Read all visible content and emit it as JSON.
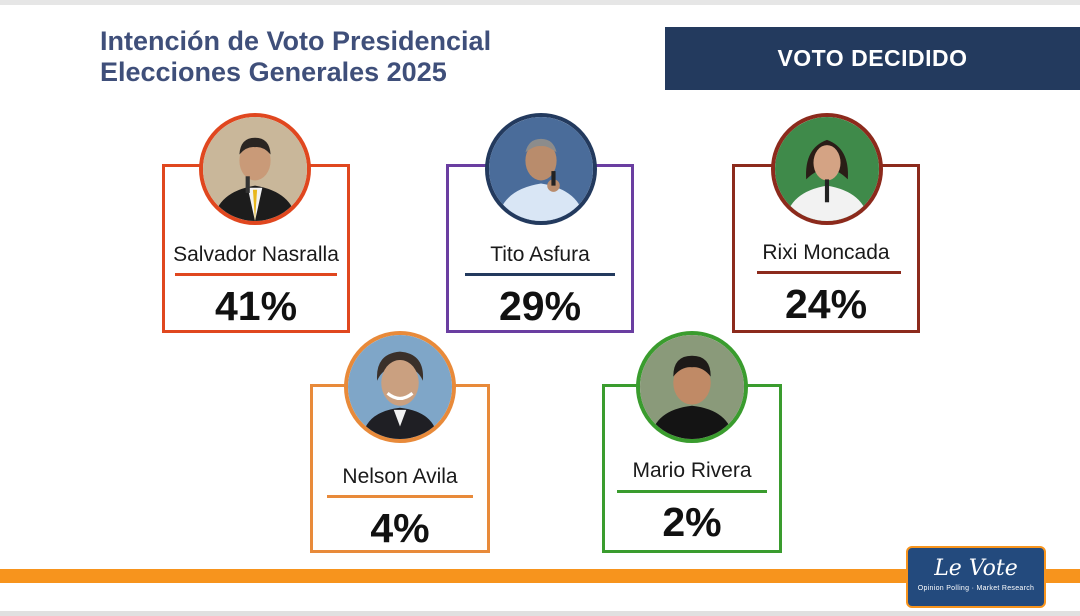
{
  "header": {
    "title_line1": "Intención de Voto Presidencial",
    "title_line2": "Elecciones Generales 2025",
    "banner": "VOTO DECIDIDO"
  },
  "candidates": [
    {
      "name": "Salvador Nasralla",
      "percent": "41%",
      "color": "#e0471f"
    },
    {
      "name": "Tito Asfura",
      "percent": "29%",
      "color": "#6a3ea1"
    },
    {
      "name": "Rixi Moncada",
      "percent": "24%",
      "color": "#8c2a1c"
    },
    {
      "name": "Nelson Avila",
      "percent": "4%",
      "color": "#e88a3a"
    },
    {
      "name": "Mario Rivera",
      "percent": "2%",
      "color": "#3a9c2e"
    }
  ],
  "logo": {
    "brand": "Le Vote",
    "tagline": "Opinion Polling · Market Research"
  },
  "colors": {
    "title": "#3f4f7a",
    "banner_bg": "#233a5e",
    "accent_bar": "#f7941d"
  }
}
